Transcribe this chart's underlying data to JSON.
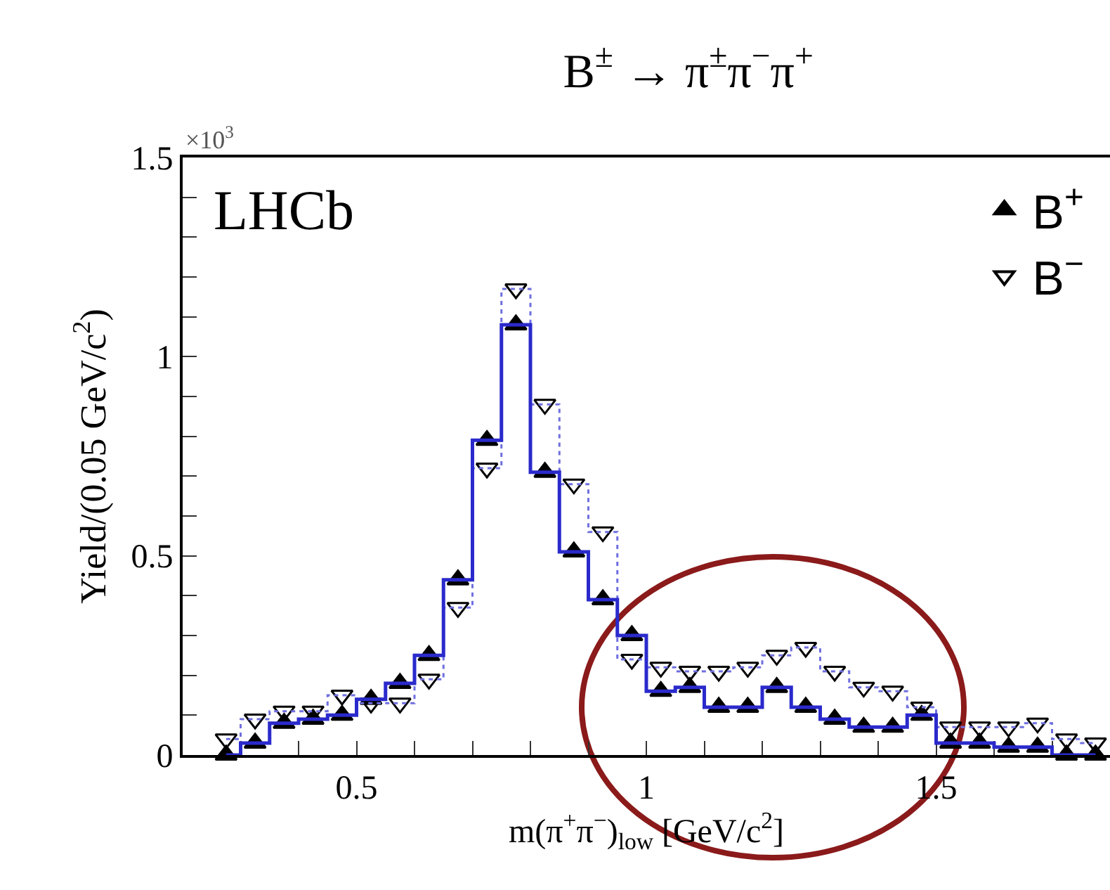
{
  "chart_data": {
    "type": "step",
    "title": "B$^{±}$ → π$^{±}$π$^{−}$π$^{+}$",
    "xlabel": "m(π$^{+}$π$^{−}$)$_{low}$ [GeV/c$^{2}$]",
    "ylabel": "Yield/(0.05 GeV/c$^{2}$)",
    "annotations": [
      "×10$^{3}$",
      "LHCb"
    ],
    "x": [
      0.275,
      0.325,
      0.375,
      0.425,
      0.475,
      0.525,
      0.575,
      0.625,
      0.675,
      0.725,
      0.775,
      0.825,
      0.875,
      0.925,
      0.975,
      1.025,
      1.075,
      1.125,
      1.175,
      1.225,
      1.275,
      1.325,
      1.375,
      1.425,
      1.475,
      1.525,
      1.575,
      1.625,
      1.675,
      1.725,
      1.775
    ],
    "series": [
      {
        "name": "B$^{+}$",
        "color": "#000000",
        "line_style": "solid",
        "values": [
          0,
          0.03,
          0.08,
          0.09,
          0.1,
          0.14,
          0.18,
          0.25,
          0.44,
          0.79,
          1.08,
          0.71,
          0.51,
          0.39,
          0.3,
          0.16,
          0.17,
          0.12,
          0.12,
          0.17,
          0.12,
          0.09,
          0.07,
          0.07,
          0.1,
          0.03,
          0.03,
          0.02,
          0.02,
          0,
          0
        ]
      },
      {
        "name": "B$^{−}$",
        "color": "#000000",
        "line_style": "dotted",
        "values": [
          0.04,
          0.09,
          0.11,
          0.11,
          0.15,
          0.13,
          0.13,
          0.19,
          0.37,
          0.72,
          1.17,
          0.88,
          0.68,
          0.56,
          0.24,
          0.22,
          0.21,
          0.21,
          0.22,
          0.25,
          0.27,
          0.21,
          0.17,
          0.16,
          0.12,
          0.07,
          0.07,
          0.07,
          0.08,
          0.04,
          0.03
        ]
      }
    ],
    "marker": "triangle",
    "legend": "top right",
    "xlim": [
      0.2,
      1.8
    ],
    "xticks": [
      {
        "value": 0.3,
        "label": null
      },
      {
        "value": 0.4,
        "label": null
      },
      0.5,
      {
        "value": 0.6,
        "label": null
      },
      {
        "value": 0.7,
        "label": null
      },
      {
        "value": 0.8,
        "label": null
      },
      {
        "value": 0.9,
        "label": null
      },
      1,
      {
        "value": 1.1,
        "label": null
      },
      {
        "value": 1.2,
        "label": null
      },
      {
        "value": 1.3,
        "label": null
      },
      {
        "value": 1.4,
        "label": null
      },
      1.5,
      {
        "value": 1.6,
        "label": null
      },
      {
        "value": 1.7,
        "label": null
      }
    ],
    "ylim": [
      0,
      1.5
    ],
    "yticks": [
      0,
      {
        "value": 0.1,
        "label": null
      },
      {
        "value": 0.2,
        "label": null
      },
      {
        "value": 0.3,
        "label": null
      },
      {
        "value": 0.4,
        "label": null
      },
      0.5,
      {
        "value": 0.6,
        "label": null
      },
      {
        "value": 0.7,
        "label": null
      },
      {
        "value": 0.8,
        "label": null
      },
      {
        "value": 0.9,
        "label": null
      },
      1,
      {
        "value": 1.1,
        "label": null
      },
      {
        "value": 1.2,
        "label": null
      },
      {
        "value": 1.3,
        "label": null
      },
      {
        "value": 1.4,
        "label": null
      },
      1.5
    ],
    "grid": false
  }
}
